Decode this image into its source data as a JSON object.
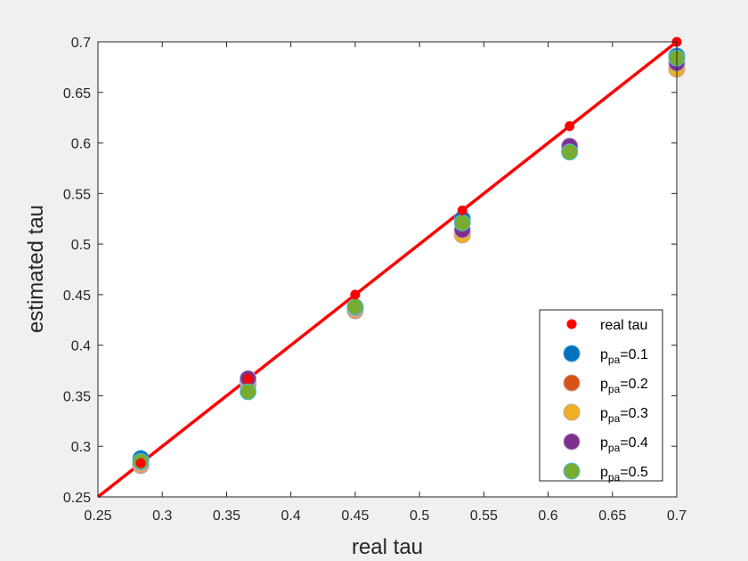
{
  "chart_data": {
    "type": "scatter",
    "title": "",
    "xlabel": "real tau",
    "ylabel": "estimated tau",
    "xlim": [
      0.25,
      0.7
    ],
    "ylim": [
      0.25,
      0.7
    ],
    "xticks": [
      "0.25",
      "0.3",
      "0.35",
      "0.4",
      "0.45",
      "0.5",
      "0.55",
      "0.6",
      "0.65",
      "0.7"
    ],
    "yticks": [
      "0.25",
      "0.3",
      "0.35",
      "0.4",
      "0.45",
      "0.5",
      "0.55",
      "0.6",
      "0.65",
      "0.7"
    ],
    "grid": false,
    "legend_position": "bottom-right",
    "x": [
      0.2833,
      0.3667,
      0.45,
      0.5333,
      0.6167,
      0.7
    ],
    "reference_line": {
      "from": [
        0.25,
        0.25
      ],
      "to": [
        0.7,
        0.7
      ],
      "color": "#ff0000"
    },
    "series": [
      {
        "name": "real tau",
        "legend_base": "real tau",
        "legend_sub": "",
        "legend_suffix": "",
        "color": "#ff0000",
        "edge": "#ff0000",
        "marker": "small",
        "values": [
          0.2833,
          0.3667,
          0.45,
          0.5333,
          0.6167,
          0.7
        ]
      },
      {
        "name": "p_pa=0.1",
        "legend_base": "p",
        "legend_sub": "pa",
        "legend_suffix": "=0.1",
        "color": "#0072bd",
        "edge": "#4a9fe0",
        "marker": "large",
        "values": [
          0.288,
          0.362,
          0.436,
          0.525,
          0.592,
          0.686
        ]
      },
      {
        "name": "p_pa=0.2",
        "legend_base": "p",
        "legend_sub": "pa",
        "legend_suffix": "=0.2",
        "color": "#d95319",
        "edge": "#c8a0a0",
        "marker": "large",
        "values": [
          0.281,
          0.365,
          0.434,
          0.512,
          0.597,
          0.674
        ]
      },
      {
        "name": "p_pa=0.3",
        "legend_base": "p",
        "legend_sub": "pa",
        "legend_suffix": "=0.3",
        "color": "#edb120",
        "edge": "#d0a0a0",
        "marker": "large",
        "values": [
          0.282,
          0.364,
          0.435,
          0.509,
          0.596,
          0.673
        ]
      },
      {
        "name": "p_pa=0.4",
        "legend_base": "p",
        "legend_sub": "pa",
        "legend_suffix": "=0.4",
        "color": "#7e2f8e",
        "edge": "#b0a0c8",
        "marker": "large",
        "values": [
          0.284,
          0.367,
          0.437,
          0.514,
          0.597,
          0.679
        ]
      },
      {
        "name": "p_pa=0.5",
        "legend_base": "p",
        "legend_sub": "pa",
        "legend_suffix": "=0.5",
        "color": "#77ac30",
        "edge": "#4dbeee",
        "marker": "large",
        "values": [
          0.285,
          0.354,
          0.438,
          0.521,
          0.591,
          0.684
        ]
      }
    ]
  }
}
